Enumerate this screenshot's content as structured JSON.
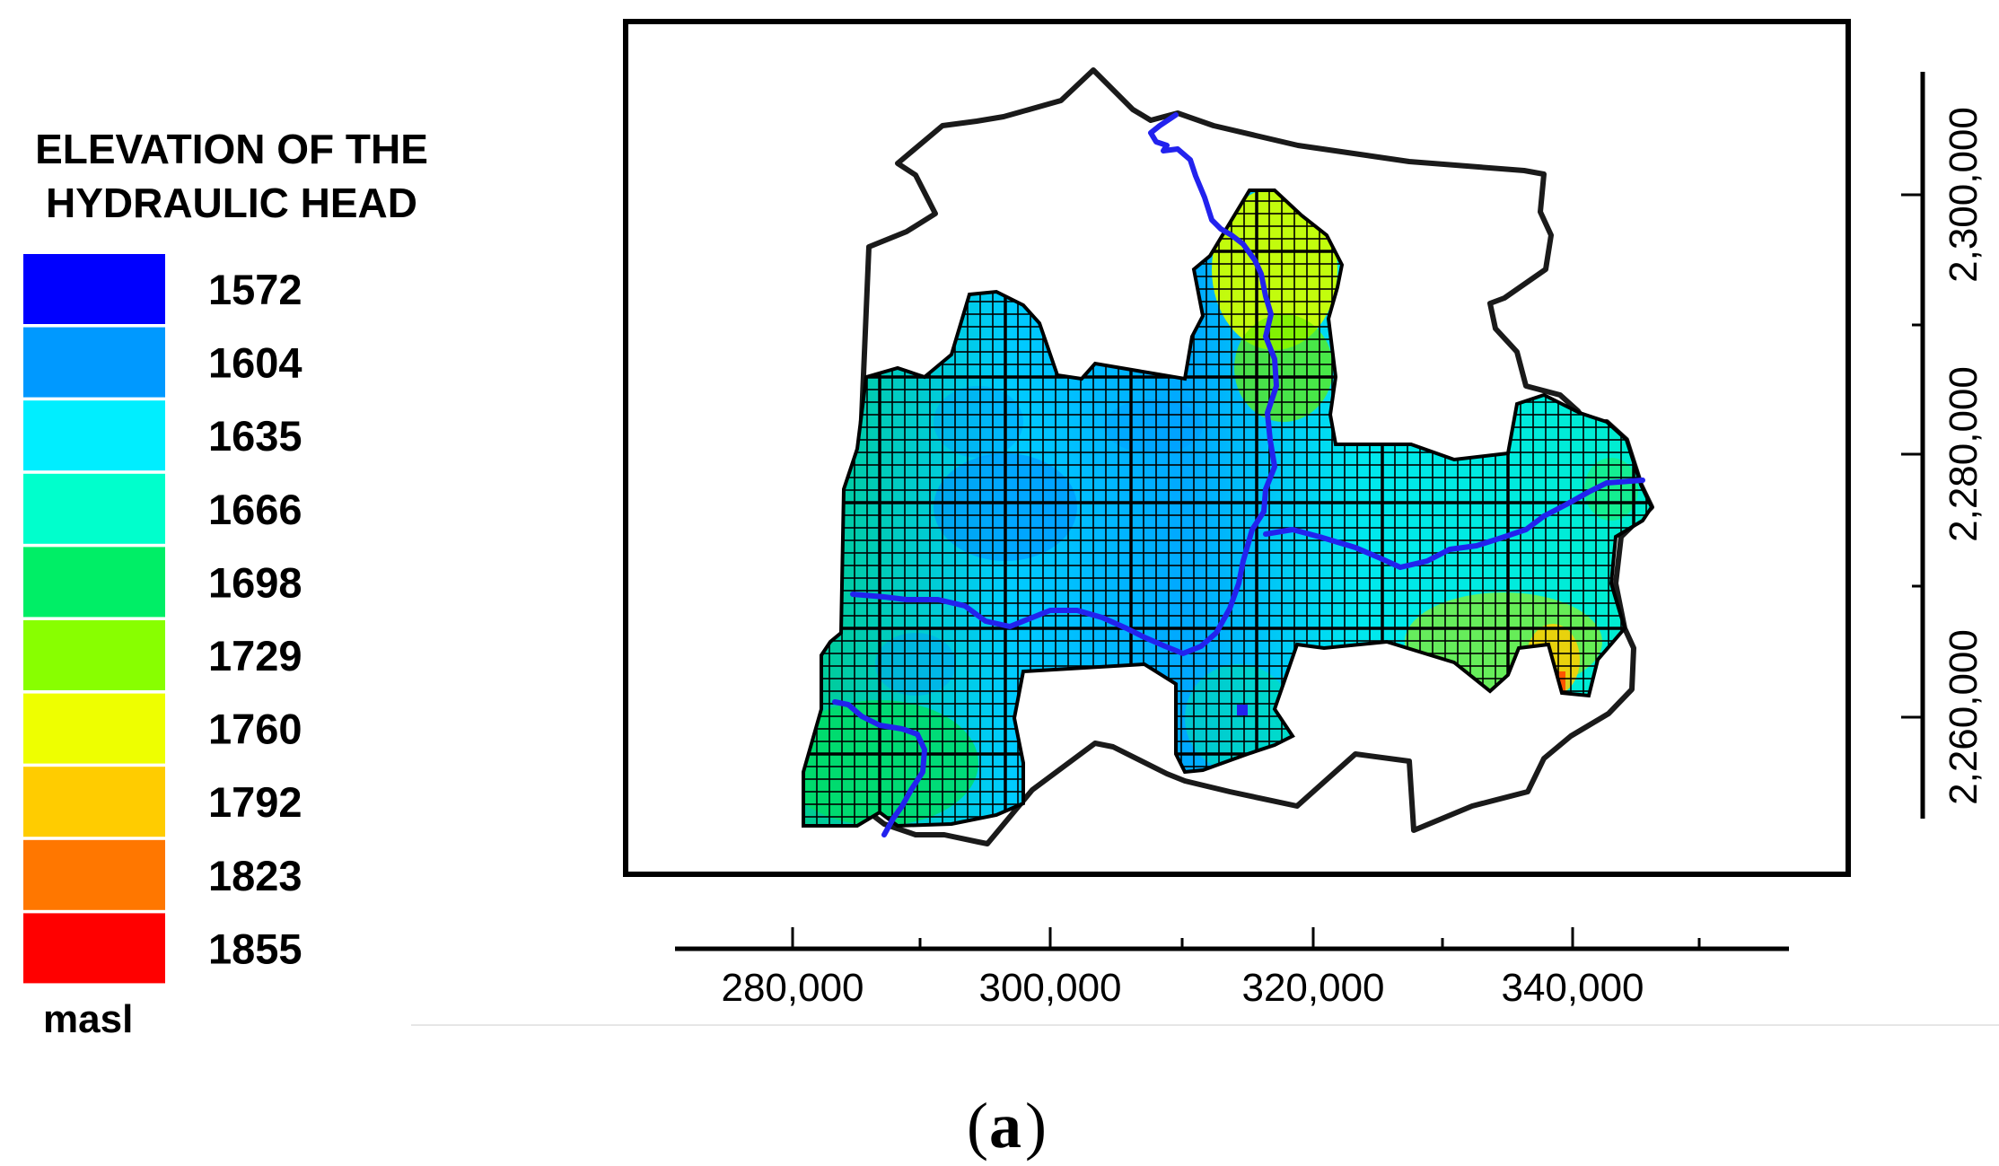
{
  "legend": {
    "title_line1": "ELEVATION OF THE",
    "title_line2": "HYDRAULIC HEAD",
    "unit": "masl",
    "classes": [
      {
        "value": "1572",
        "color": "#0000ff"
      },
      {
        "value": "1604",
        "color": "#0099ff"
      },
      {
        "value": "1635",
        "color": "#00eeff"
      },
      {
        "value": "1666",
        "color": "#00ffcc"
      },
      {
        "value": "1698",
        "color": "#00ee66"
      },
      {
        "value": "1729",
        "color": "#88ff00"
      },
      {
        "value": "1760",
        "color": "#eeff00"
      },
      {
        "value": "1792",
        "color": "#ffcc00"
      },
      {
        "value": "1823",
        "color": "#ff7700"
      },
      {
        "value": "1855",
        "color": "#ff0000"
      }
    ]
  },
  "map": {
    "boundary_color": "#1a1a1a",
    "river_color": "#2222ee",
    "grid_color": "#000000",
    "x_axis": {
      "ticks": [
        "280,000",
        "300,000",
        "320,000",
        "340,000"
      ]
    },
    "y_axis": {
      "ticks": [
        "2,300,000",
        "2,280,000",
        "2,260,000"
      ]
    }
  },
  "caption": {
    "open": "(",
    "letter": "a",
    "close": ")"
  }
}
